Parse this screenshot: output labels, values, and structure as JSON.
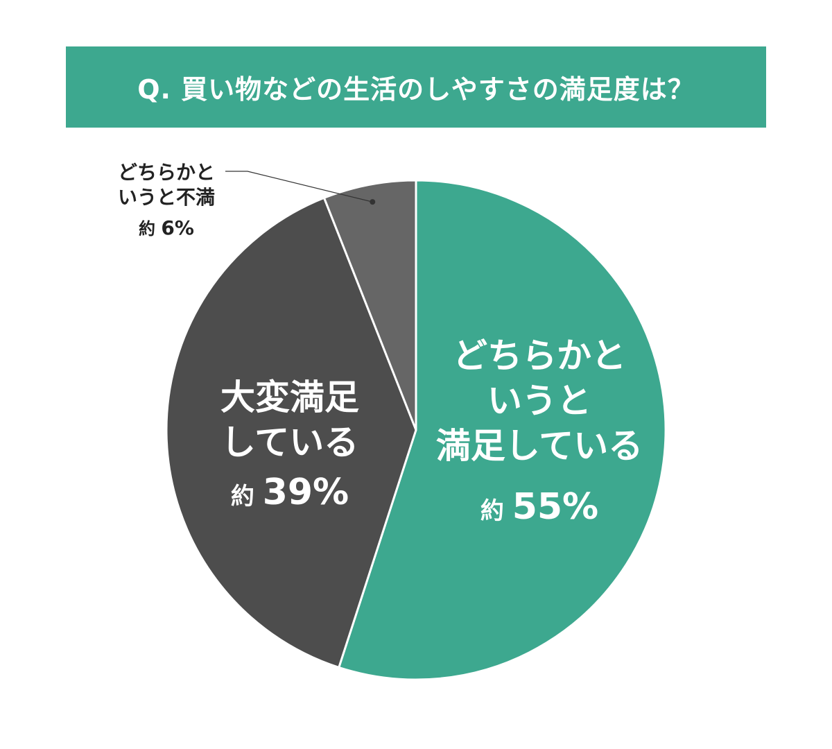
{
  "chart_data": {
    "type": "pie",
    "title": "Q. 買い物などの生活のしやすさの満足度は？",
    "start_angle": "top",
    "direction": "clockwise",
    "slices": [
      {
        "label_lines": [
          "どちらかと",
          "いうと",
          "満足している"
        ],
        "value": 55,
        "value_label": "55%",
        "prefix": "約",
        "color": "#3DA88F"
      },
      {
        "label_lines": [
          "大変満足",
          "している"
        ],
        "value": 39,
        "value_label": "39%",
        "prefix": "約",
        "color": "#4D4D4D"
      },
      {
        "label_lines": [
          "どちらかと",
          "いうと不満"
        ],
        "value": 6,
        "value_label": "6%",
        "prefix": "約",
        "color": "#666666"
      }
    ]
  }
}
